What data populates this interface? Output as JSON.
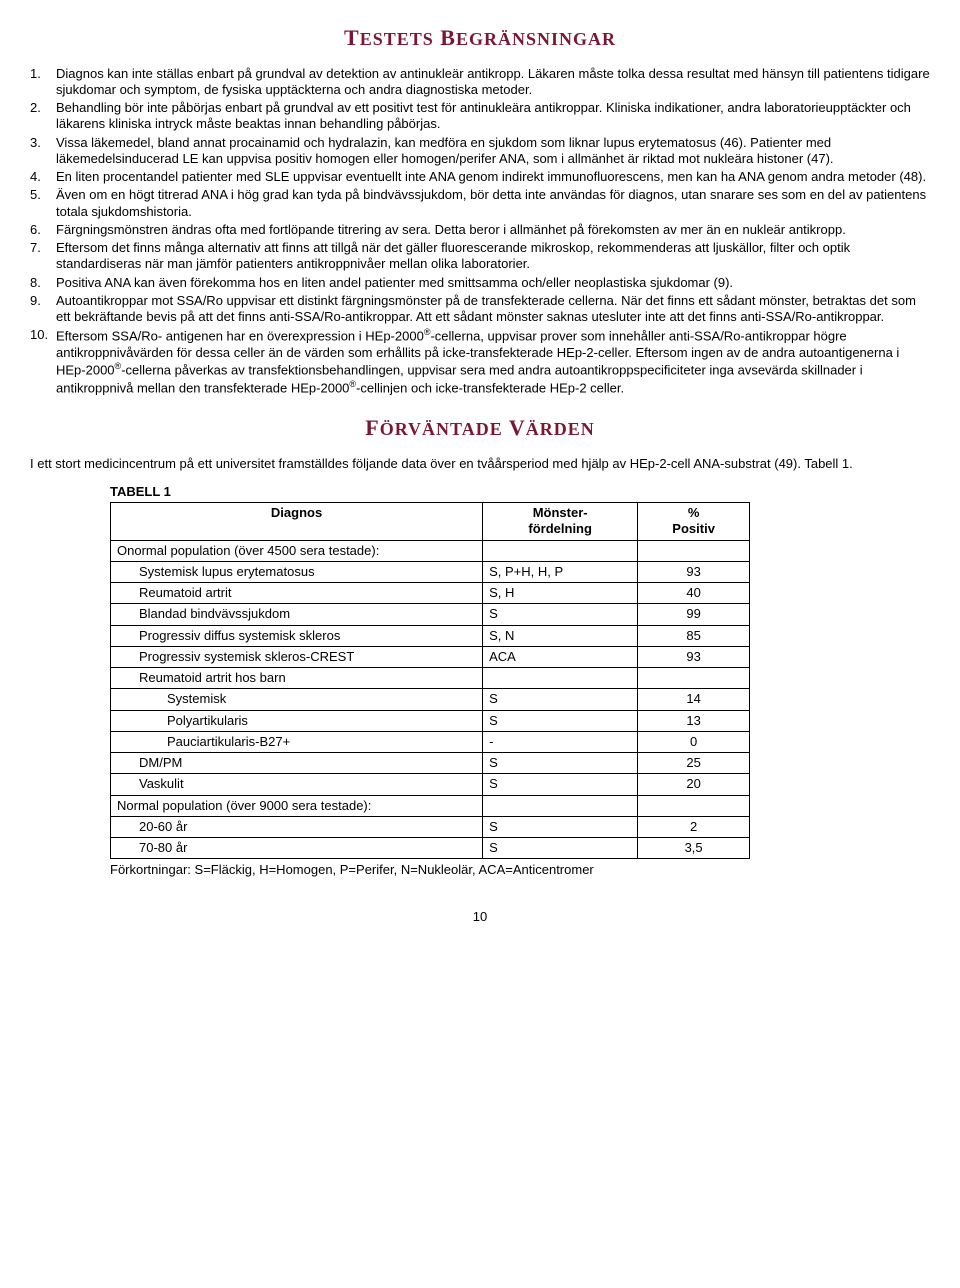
{
  "heading1_colored": {
    "main": "T",
    "rest1": "ESTETS",
    "main2": "B",
    "rest2": "EGRÄNSNINGAR",
    "color": "#7b1732"
  },
  "limitations": [
    "Diagnos kan inte ställas enbart på grundval av detektion av antinukleär antikropp. Läkaren måste tolka dessa resultat med hänsyn till patientens tidigare sjukdomar och symptom, de fysiska upptäckterna och andra diagnostiska metoder.",
    "Behandling bör inte påbörjas enbart på grundval av ett positivt test för antinukleära antikroppar. Kliniska indikationer, andra laboratorieupptäckter och läkarens kliniska intryck måste beaktas innan behandling påbörjas.",
    "Vissa läkemedel, bland annat procainamid och hydralazin, kan medföra en sjukdom som liknar lupus erytematosus (46). Patienter med läkemedelsinducerad LE kan uppvisa positiv homogen eller homogen/perifer ANA, som i allmänhet är riktad mot nukleära histoner (47).",
    "En liten procentandel patienter med SLE uppvisar eventuellt inte ANA genom indirekt immunofluorescens, men kan ha ANA genom andra metoder (48).",
    "Även om en högt titrerad ANA i hög grad kan tyda på bindvävssjukdom, bör detta inte användas för diagnos, utan snarare ses som en del av patientens totala sjukdomshistoria.",
    "Färgningsmönstren ändras ofta med fortlöpande titrering av sera. Detta beror i allmänhet på förekomsten av mer än en nukleär antikropp.",
    "Eftersom det finns många alternativ att finns att tillgå när det gäller fluorescerande mikroskop, rekommenderas att ljuskällor, filter och optik standardiseras när man jämför patienters antikroppnivåer mellan olika laboratorier.",
    "Positiva ANA kan även förekomma hos en liten andel patienter med smittsamma och/eller neoplastiska sjukdomar (9).",
    "Autoantikroppar mot SSA/Ro uppvisar ett distinkt färgningsmönster på de transfekterade cellerna. När det finns ett sådant mönster, betraktas det som ett bekräftande bevis på att det finns anti-SSA/Ro-antikroppar. Att ett sådant mönster saknas utesluter inte att det finns anti-SSA/Ro-antikroppar.",
    "Eftersom SSA/Ro- antigenen har en överexpression i HEp-2000®-cellerna, uppvisar prover som innehåller anti-SSA/Ro-antikroppar högre antikroppnivåvärden för dessa celler än de värden som erhållits på icke-transfekterade HEp-2-celler. Eftersom ingen av de andra autoantigenerna i HEp-2000®-cellerna påverkas av transfektionsbehandlingen, uppvisar sera med andra autoantikroppspecificiteter inga avsevärda skillnader i antikroppnivå mellan den transfekterade HEp-2000®-cellinjen och icke-transfekterade HEp-2 celler."
  ],
  "heading2_colored": {
    "main": "F",
    "rest1": "ÖRVÄNTADE",
    "main2": "V",
    "rest2": "ÄRDEN",
    "color": "#7b1732"
  },
  "expected_intro": "I ett stort medicincentrum på ett universitet framställdes följande data över en tvåårsperiod med hjälp av HEp-2-cell ANA-substrat (49). Tabell 1.",
  "table": {
    "title": "TABELL 1",
    "headers": {
      "c1": "Diagnos",
      "c2": "Mönster-fördelning",
      "c3": "% Positiv"
    },
    "rows": [
      {
        "label": "Onormal population (över 4500 sera testade):",
        "pattern": "",
        "pos": "",
        "indent": 0,
        "span": true
      },
      {
        "label": "Systemisk lupus erytematosus",
        "pattern": "S, P+H, H, P",
        "pos": "93",
        "indent": 1
      },
      {
        "label": "Reumatoid artrit",
        "pattern": "S, H",
        "pos": "40",
        "indent": 1
      },
      {
        "label": "Blandad bindvävssjukdom",
        "pattern": "S",
        "pos": "99",
        "indent": 1
      },
      {
        "label": "Progressiv diffus systemisk skleros",
        "pattern": "S, N",
        "pos": "85",
        "indent": 1
      },
      {
        "label": "Progressiv systemisk skleros-CREST",
        "pattern": "ACA",
        "pos": "93",
        "indent": 1
      },
      {
        "label": "Reumatoid artrit hos barn",
        "pattern": "",
        "pos": "",
        "indent": 1,
        "span": true
      },
      {
        "label": "Systemisk",
        "pattern": "S",
        "pos": "14",
        "indent": 2
      },
      {
        "label": "Polyartikularis",
        "pattern": "S",
        "pos": "13",
        "indent": 2
      },
      {
        "label": "Pauciartikularis-B27+",
        "pattern": "-",
        "pos": "0",
        "indent": 2
      },
      {
        "label": "DM/PM",
        "pattern": "S",
        "pos": "25",
        "indent": 1
      },
      {
        "label": "Vaskulit",
        "pattern": "S",
        "pos": "20",
        "indent": 1
      },
      {
        "label": "Normal population (över 9000 sera testade):",
        "pattern": "",
        "pos": "",
        "indent": 0,
        "span": true
      },
      {
        "label": "20-60 år",
        "pattern": "S",
        "pos": "2",
        "indent": 1
      },
      {
        "label": "70-80 år",
        "pattern": "S",
        "pos": "3,5",
        "indent": 1
      }
    ],
    "note": "Förkortningar: S=Fläckig, H=Homogen, P=Perifer, N=Nukleolär, ACA=Anticentromer"
  },
  "pagenum": "10"
}
